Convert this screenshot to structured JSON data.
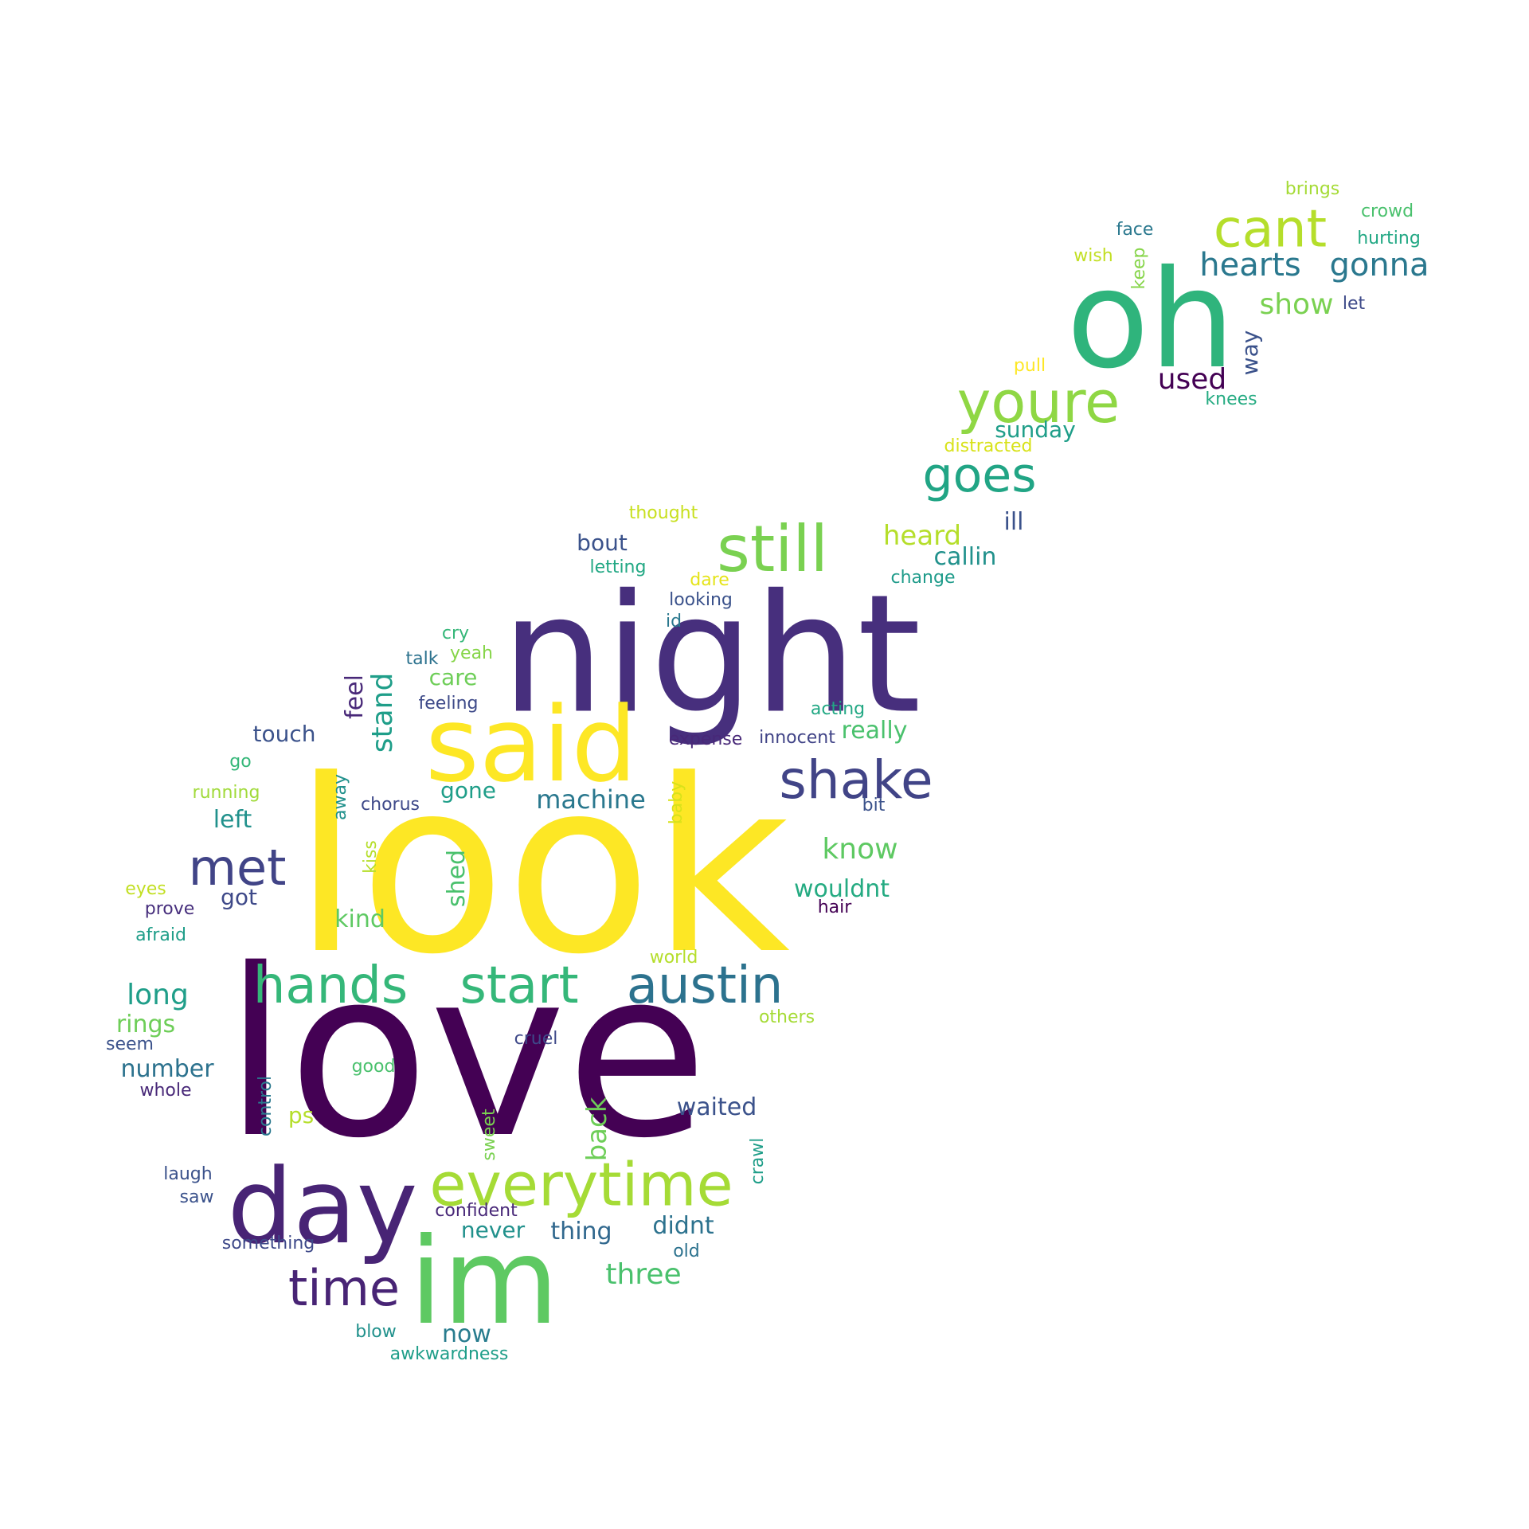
{
  "words": [
    {
      "text": "love",
      "color": "#440154"
    },
    {
      "text": "look",
      "color": "#fde725"
    },
    {
      "text": "night",
      "color": "#472f7d"
    },
    {
      "text": "oh",
      "color": "#2fb47c"
    },
    {
      "text": "said",
      "color": "#fde725"
    },
    {
      "text": "im",
      "color": "#5ec962"
    },
    {
      "text": "day",
      "color": "#482475"
    },
    {
      "text": "everytime",
      "color": "#a5db36"
    },
    {
      "text": "still",
      "color": "#7ad151"
    },
    {
      "text": "hands",
      "color": "#35b779"
    },
    {
      "text": "start",
      "color": "#35b779"
    },
    {
      "text": "austin",
      "color": "#2c728e"
    },
    {
      "text": "youre",
      "color": "#8fd744"
    },
    {
      "text": "cant",
      "color": "#b5de2b"
    },
    {
      "text": "shake",
      "color": "#414487"
    },
    {
      "text": "goes",
      "color": "#21a585"
    },
    {
      "text": "met",
      "color": "#414487"
    },
    {
      "text": "time",
      "color": "#482475"
    },
    {
      "text": "hearts",
      "color": "#2a788e"
    },
    {
      "text": "gonna",
      "color": "#2a788e"
    },
    {
      "text": "three",
      "color": "#4ac16d"
    },
    {
      "text": "show",
      "color": "#7ad151"
    },
    {
      "text": "used",
      "color": "#440154"
    },
    {
      "text": "heard",
      "color": "#b5de2b"
    },
    {
      "text": "know",
      "color": "#5ec962"
    },
    {
      "text": "long",
      "color": "#1f9e89"
    },
    {
      "text": "machine",
      "color": "#2a788e"
    },
    {
      "text": "back",
      "color": "#6ece58"
    },
    {
      "text": "waited",
      "color": "#3b528b"
    },
    {
      "text": "didnt",
      "color": "#2c728e"
    },
    {
      "text": "thing",
      "color": "#31688e"
    },
    {
      "text": "never",
      "color": "#21918c"
    },
    {
      "text": "now",
      "color": "#287c8e"
    },
    {
      "text": "number",
      "color": "#2c728e"
    },
    {
      "text": "rings",
      "color": "#6ece58"
    },
    {
      "text": "wouldnt",
      "color": "#25ab82"
    },
    {
      "text": "really",
      "color": "#4ac16d"
    },
    {
      "text": "sunday",
      "color": "#1f9e89"
    },
    {
      "text": "callin",
      "color": "#21918c"
    },
    {
      "text": "bout",
      "color": "#3b528b"
    },
    {
      "text": "ill",
      "color": "#3b528b"
    },
    {
      "text": "stand",
      "color": "#1f9e89"
    },
    {
      "text": "feel",
      "color": "#482878"
    },
    {
      "text": "touch",
      "color": "#3b528b"
    },
    {
      "text": "care",
      "color": "#6ece58"
    },
    {
      "text": "left",
      "color": "#21918c"
    },
    {
      "text": "kind",
      "color": "#5ec962"
    },
    {
      "text": "got",
      "color": "#3e4989"
    },
    {
      "text": "gone",
      "color": "#1f9e89"
    },
    {
      "text": "ps",
      "color": "#b5de2b"
    },
    {
      "text": "shed",
      "color": "#4ac16d"
    },
    {
      "text": "way",
      "color": "#3b528b"
    },
    {
      "text": "brings",
      "color": "#a5db36"
    },
    {
      "text": "crowd",
      "color": "#4ac16d"
    },
    {
      "text": "face",
      "color": "#2a788e"
    },
    {
      "text": "hurting",
      "color": "#22a884"
    },
    {
      "text": "wish",
      "color": "#c2df23"
    },
    {
      "text": "keep",
      "color": "#86d549"
    },
    {
      "text": "let",
      "color": "#3e4a89"
    },
    {
      "text": "pull",
      "color": "#fde725"
    },
    {
      "text": "knees",
      "color": "#25ab82"
    },
    {
      "text": "distracted",
      "color": "#d8e219"
    },
    {
      "text": "thought",
      "color": "#c8e020"
    },
    {
      "text": "letting",
      "color": "#22a884"
    },
    {
      "text": "dare",
      "color": "#e5e419"
    },
    {
      "text": "change",
      "color": "#1e9b8a"
    },
    {
      "text": "looking",
      "color": "#3b528b"
    },
    {
      "text": "id",
      "color": "#2a788e"
    },
    {
      "text": "cry",
      "color": "#35b779"
    },
    {
      "text": "yeah",
      "color": "#86d549"
    },
    {
      "text": "talk",
      "color": "#2c728e"
    },
    {
      "text": "feeling",
      "color": "#3e4a89"
    },
    {
      "text": "acting",
      "color": "#22a884"
    },
    {
      "text": "expense",
      "color": "#482878"
    },
    {
      "text": "innocent",
      "color": "#414487"
    },
    {
      "text": "go",
      "color": "#35b779"
    },
    {
      "text": "running",
      "color": "#a0da39"
    },
    {
      "text": "away",
      "color": "#21918c"
    },
    {
      "text": "chorus",
      "color": "#3e4989"
    },
    {
      "text": "baby",
      "color": "#d8e219"
    },
    {
      "text": "bit",
      "color": "#3b528b"
    },
    {
      "text": "kiss",
      "color": "#b5de2b"
    },
    {
      "text": "eyes",
      "color": "#c2df23"
    },
    {
      "text": "prove",
      "color": "#472f7d"
    },
    {
      "text": "hair",
      "color": "#440154"
    },
    {
      "text": "afraid",
      "color": "#1f9e89"
    },
    {
      "text": "world",
      "color": "#b5de2b"
    },
    {
      "text": "others",
      "color": "#a5db36"
    },
    {
      "text": "seem",
      "color": "#3b528b"
    },
    {
      "text": "cruel",
      "color": "#3e4989"
    },
    {
      "text": "good",
      "color": "#4ac16d"
    },
    {
      "text": "whole",
      "color": "#482878"
    },
    {
      "text": "control",
      "color": "#2a788e"
    },
    {
      "text": "sweet",
      "color": "#7ad151"
    },
    {
      "text": "crawl",
      "color": "#1f9e89"
    },
    {
      "text": "laugh",
      "color": "#3b528b"
    },
    {
      "text": "saw",
      "color": "#3b528b"
    },
    {
      "text": "confident",
      "color": "#482878"
    },
    {
      "text": "something",
      "color": "#3e4989"
    },
    {
      "text": "old",
      "color": "#2c728e"
    },
    {
      "text": "blow",
      "color": "#21918c"
    },
    {
      "text": "awkwardness",
      "color": "#1f9e89"
    }
  ]
}
